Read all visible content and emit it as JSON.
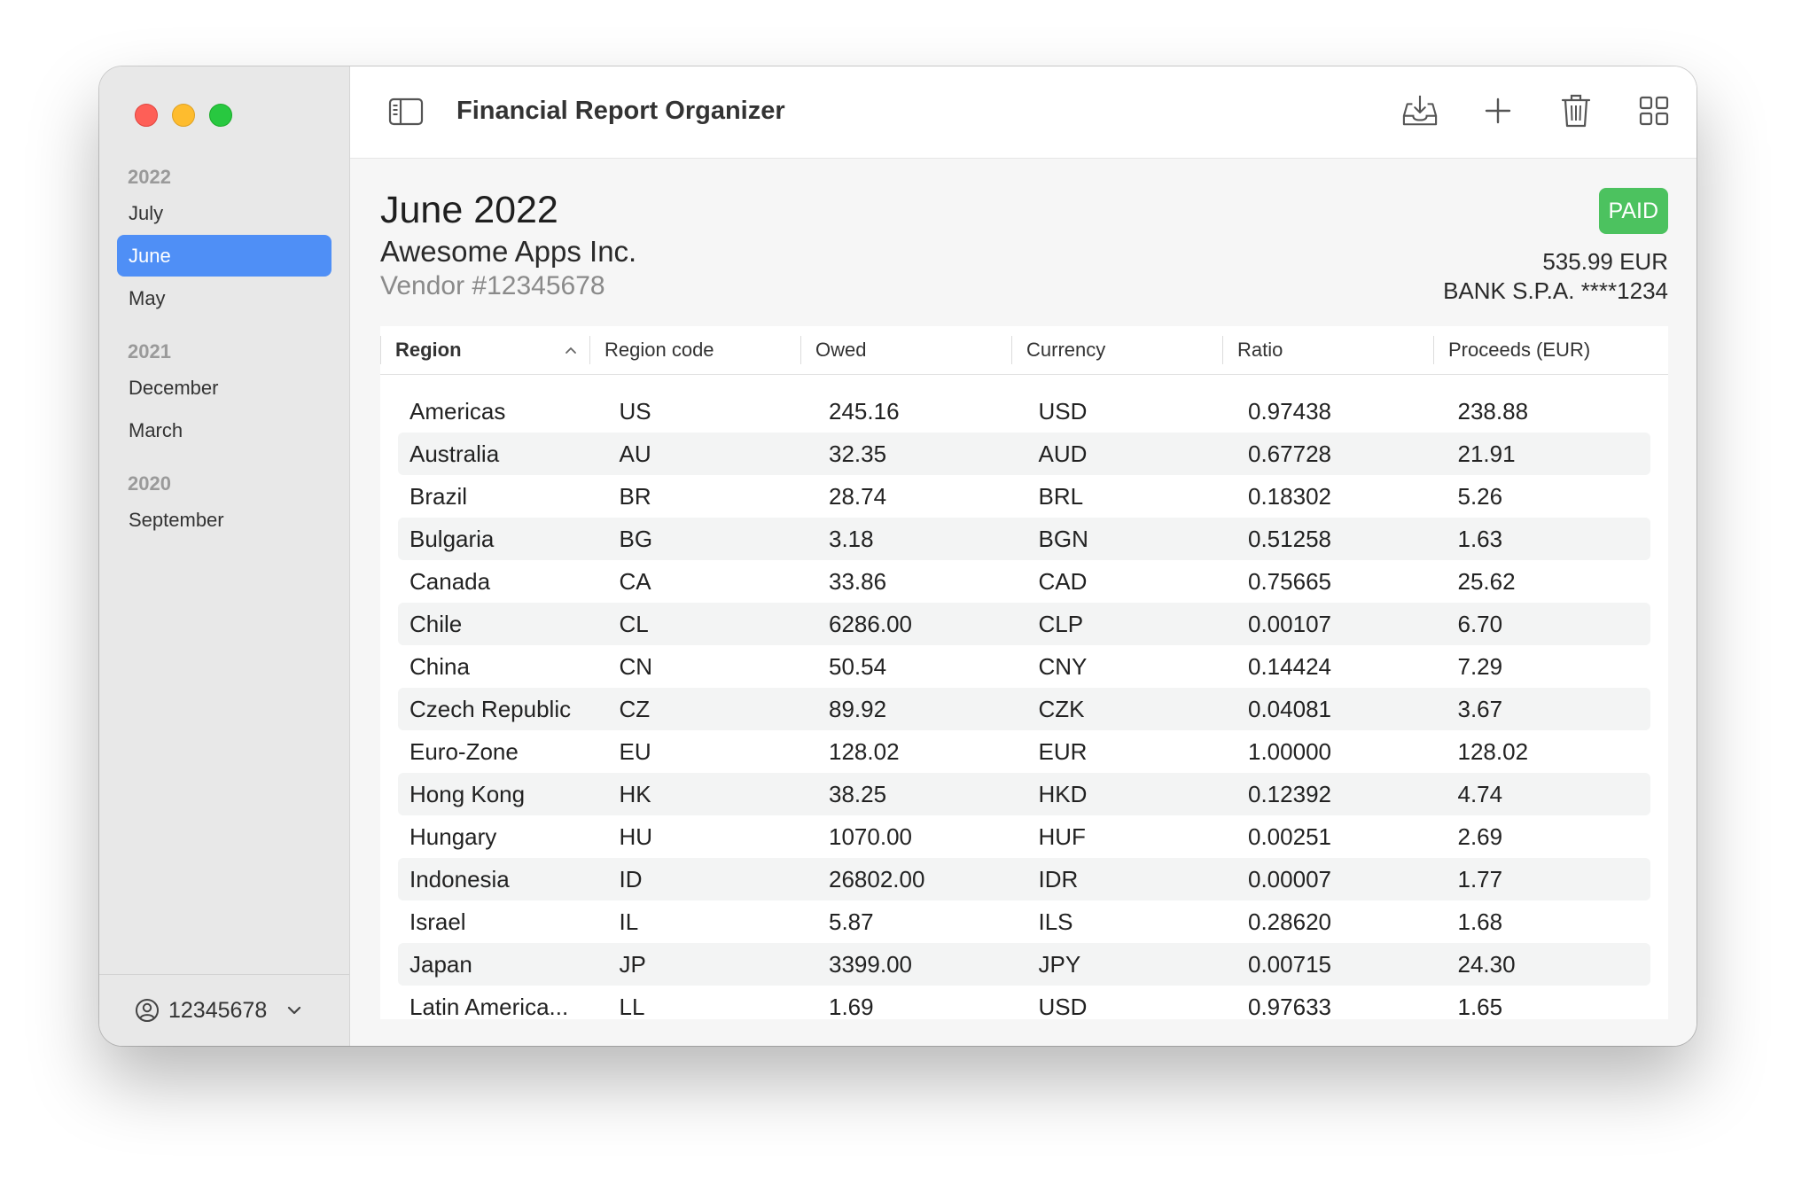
{
  "app": {
    "title": "Financial Report Organizer"
  },
  "sidebar": {
    "groups": [
      {
        "year": "2022",
        "items": [
          "July",
          "June",
          "May"
        ]
      },
      {
        "year": "2021",
        "items": [
          "December",
          "March"
        ]
      },
      {
        "year": "2020",
        "items": [
          "September"
        ]
      }
    ],
    "selected": "June",
    "account": "12345678"
  },
  "toolbar": {
    "icons": [
      "sidebar-toggle-icon",
      "download-tray-icon",
      "plus-icon",
      "trash-icon",
      "grid-icon"
    ]
  },
  "report": {
    "month": "June 2022",
    "vendor": "Awesome Apps Inc.",
    "vendor_number": "Vendor #12345678",
    "status": "PAID",
    "amount": "535.99 EUR",
    "bank": "BANK S.P.A. ****1234"
  },
  "colors": {
    "accent": "#4f8ff6",
    "paid": "#4cc25f"
  },
  "table": {
    "columns": [
      "Region",
      "Region code",
      "Owed",
      "Currency",
      "Ratio",
      "Proceeds (EUR)"
    ],
    "sorted_column": "Region",
    "rows": [
      [
        "Americas",
        "US",
        "245.16",
        "USD",
        "0.97438",
        "238.88"
      ],
      [
        "Australia",
        "AU",
        "32.35",
        "AUD",
        "0.67728",
        "21.91"
      ],
      [
        "Brazil",
        "BR",
        "28.74",
        "BRL",
        "0.18302",
        "5.26"
      ],
      [
        "Bulgaria",
        "BG",
        "3.18",
        "BGN",
        "0.51258",
        "1.63"
      ],
      [
        "Canada",
        "CA",
        "33.86",
        "CAD",
        "0.75665",
        "25.62"
      ],
      [
        "Chile",
        "CL",
        "6286.00",
        "CLP",
        "0.00107",
        "6.70"
      ],
      [
        "China",
        "CN",
        "50.54",
        "CNY",
        "0.14424",
        "7.29"
      ],
      [
        "Czech Republic",
        "CZ",
        "89.92",
        "CZK",
        "0.04081",
        "3.67"
      ],
      [
        "Euro-Zone",
        "EU",
        "128.02",
        "EUR",
        "1.00000",
        "128.02"
      ],
      [
        "Hong Kong",
        "HK",
        "38.25",
        "HKD",
        "0.12392",
        "4.74"
      ],
      [
        "Hungary",
        "HU",
        "1070.00",
        "HUF",
        "0.00251",
        "2.69"
      ],
      [
        "Indonesia",
        "ID",
        "26802.00",
        "IDR",
        "0.00007",
        "1.77"
      ],
      [
        "Israel",
        "IL",
        "5.87",
        "ILS",
        "0.28620",
        "1.68"
      ],
      [
        "Japan",
        "JP",
        "3399.00",
        "JPY",
        "0.00715",
        "24.30"
      ],
      [
        "Latin America...",
        "LL",
        "1.69",
        "USD",
        "0.97633",
        "1.65"
      ]
    ]
  }
}
